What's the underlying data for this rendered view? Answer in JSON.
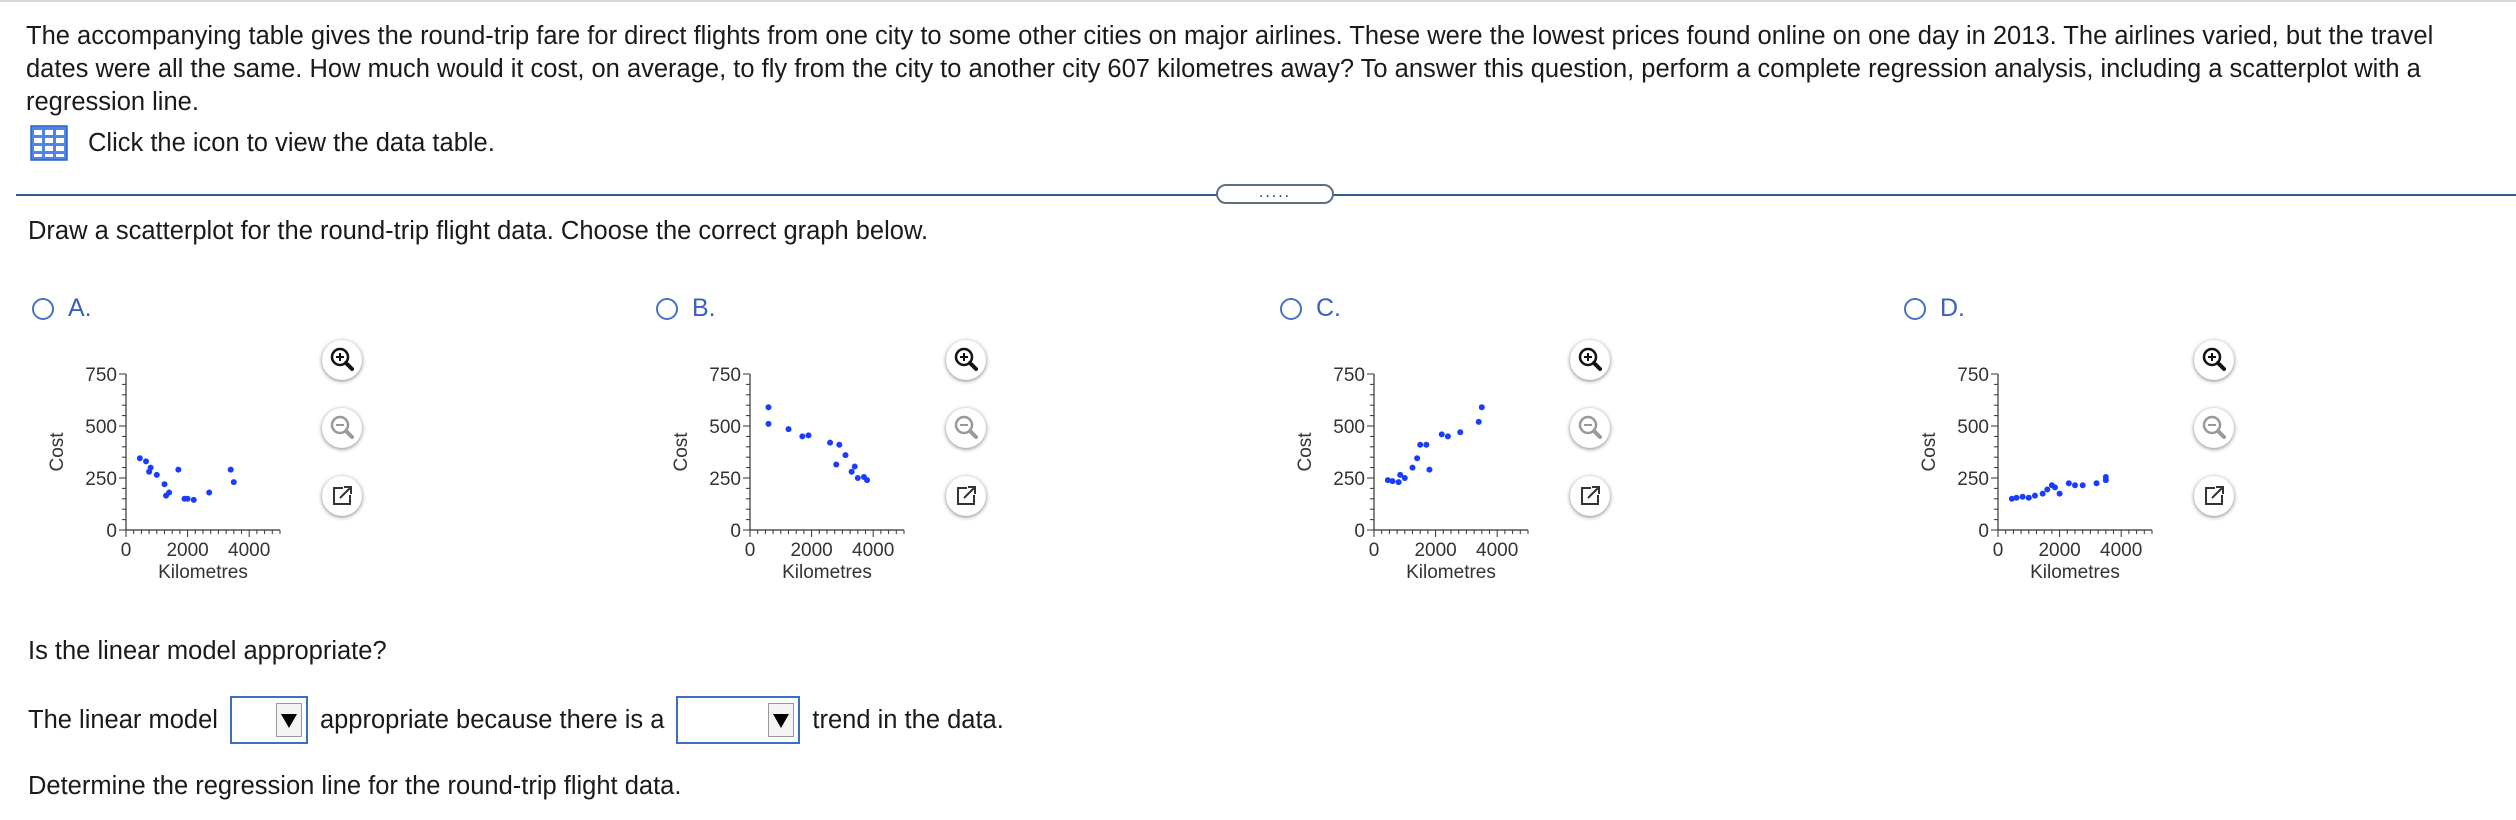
{
  "question": {
    "text": "The accompanying table gives the round-trip fare for direct flights from one city to some other cities on major airlines. These were the lowest prices found online on one day in 2013. The airlines varied, but the travel dates were all the same. How much would it cost, on average, to fly from the city to another city 607 kilometres away? To answer this question, perform a complete regression analysis, including a scatterplot with a regression line.",
    "data_link_label": "Click the icon to view the data table."
  },
  "expander": {
    "label": "....."
  },
  "part1": {
    "prompt": "Draw a scatterplot for the round-trip flight data. Choose the correct graph below."
  },
  "options": [
    {
      "letter": "A.",
      "selected": false
    },
    {
      "letter": "B.",
      "selected": false
    },
    {
      "letter": "C.",
      "selected": false
    },
    {
      "letter": "D.",
      "selected": false
    }
  ],
  "chart_data": [
    {
      "type": "scatter",
      "option": "A",
      "xlabel": "Kilometres",
      "ylabel": "Cost",
      "xlim": [
        0,
        5000
      ],
      "ylim": [
        0,
        750
      ],
      "xticks": [
        0,
        2000,
        4000
      ],
      "yticks": [
        0,
        250,
        500,
        750
      ],
      "points": [
        [
          450,
          345
        ],
        [
          650,
          330
        ],
        [
          800,
          300
        ],
        [
          750,
          280
        ],
        [
          1000,
          265
        ],
        [
          1250,
          220
        ],
        [
          1400,
          180
        ],
        [
          1300,
          165
        ],
        [
          1700,
          290
        ],
        [
          1900,
          150
        ],
        [
          2000,
          150
        ],
        [
          2200,
          145
        ],
        [
          2700,
          180
        ],
        [
          3400,
          290
        ],
        [
          3500,
          230
        ]
      ]
    },
    {
      "type": "scatter",
      "option": "B",
      "xlabel": "Kilometres",
      "ylabel": "Cost",
      "xlim": [
        0,
        5000
      ],
      "ylim": [
        0,
        750
      ],
      "xticks": [
        0,
        2000,
        4000
      ],
      "yticks": [
        0,
        250,
        500,
        750
      ],
      "points": [
        [
          600,
          590
        ],
        [
          600,
          510
        ],
        [
          1250,
          485
        ],
        [
          1700,
          450
        ],
        [
          1900,
          455
        ],
        [
          2600,
          420
        ],
        [
          2900,
          410
        ],
        [
          2800,
          315
        ],
        [
          3100,
          360
        ],
        [
          3300,
          280
        ],
        [
          3400,
          305
        ],
        [
          3500,
          250
        ],
        [
          3700,
          255
        ],
        [
          3800,
          240
        ]
      ]
    },
    {
      "type": "scatter",
      "option": "C",
      "xlabel": "Kilometres",
      "ylabel": "Cost",
      "xlim": [
        0,
        5000
      ],
      "ylim": [
        0,
        750
      ],
      "xticks": [
        0,
        2000,
        4000
      ],
      "yticks": [
        0,
        250,
        500,
        750
      ],
      "points": [
        [
          450,
          240
        ],
        [
          600,
          235
        ],
        [
          800,
          230
        ],
        [
          850,
          265
        ],
        [
          1000,
          250
        ],
        [
          1250,
          300
        ],
        [
          1400,
          345
        ],
        [
          1500,
          410
        ],
        [
          1700,
          410
        ],
        [
          1800,
          290
        ],
        [
          2200,
          460
        ],
        [
          2400,
          450
        ],
        [
          2800,
          470
        ],
        [
          3400,
          520
        ],
        [
          3500,
          590
        ]
      ]
    },
    {
      "type": "scatter",
      "option": "D",
      "xlabel": "Kilometres",
      "ylabel": "Cost",
      "xlim": [
        0,
        5000
      ],
      "ylim": [
        0,
        750
      ],
      "xticks": [
        0,
        2000,
        4000
      ],
      "yticks": [
        0,
        250,
        500,
        750
      ],
      "points": [
        [
          450,
          150
        ],
        [
          600,
          155
        ],
        [
          800,
          160
        ],
        [
          1000,
          155
        ],
        [
          1200,
          165
        ],
        [
          1450,
          175
        ],
        [
          1600,
          195
        ],
        [
          1850,
          205
        ],
        [
          1750,
          215
        ],
        [
          2000,
          175
        ],
        [
          2300,
          225
        ],
        [
          2500,
          215
        ],
        [
          2750,
          215
        ],
        [
          3200,
          225
        ],
        [
          3500,
          240
        ],
        [
          3500,
          255
        ]
      ]
    }
  ],
  "part2": {
    "question": "Is the linear model appropriate?",
    "sentence_start": "The linear model",
    "sentence_mid": "appropriate because there is a",
    "sentence_end": "trend in the data.",
    "dropdown1_value": "",
    "dropdown2_value": ""
  },
  "part3": {
    "prompt": "Determine the regression line for the round-trip flight data."
  }
}
